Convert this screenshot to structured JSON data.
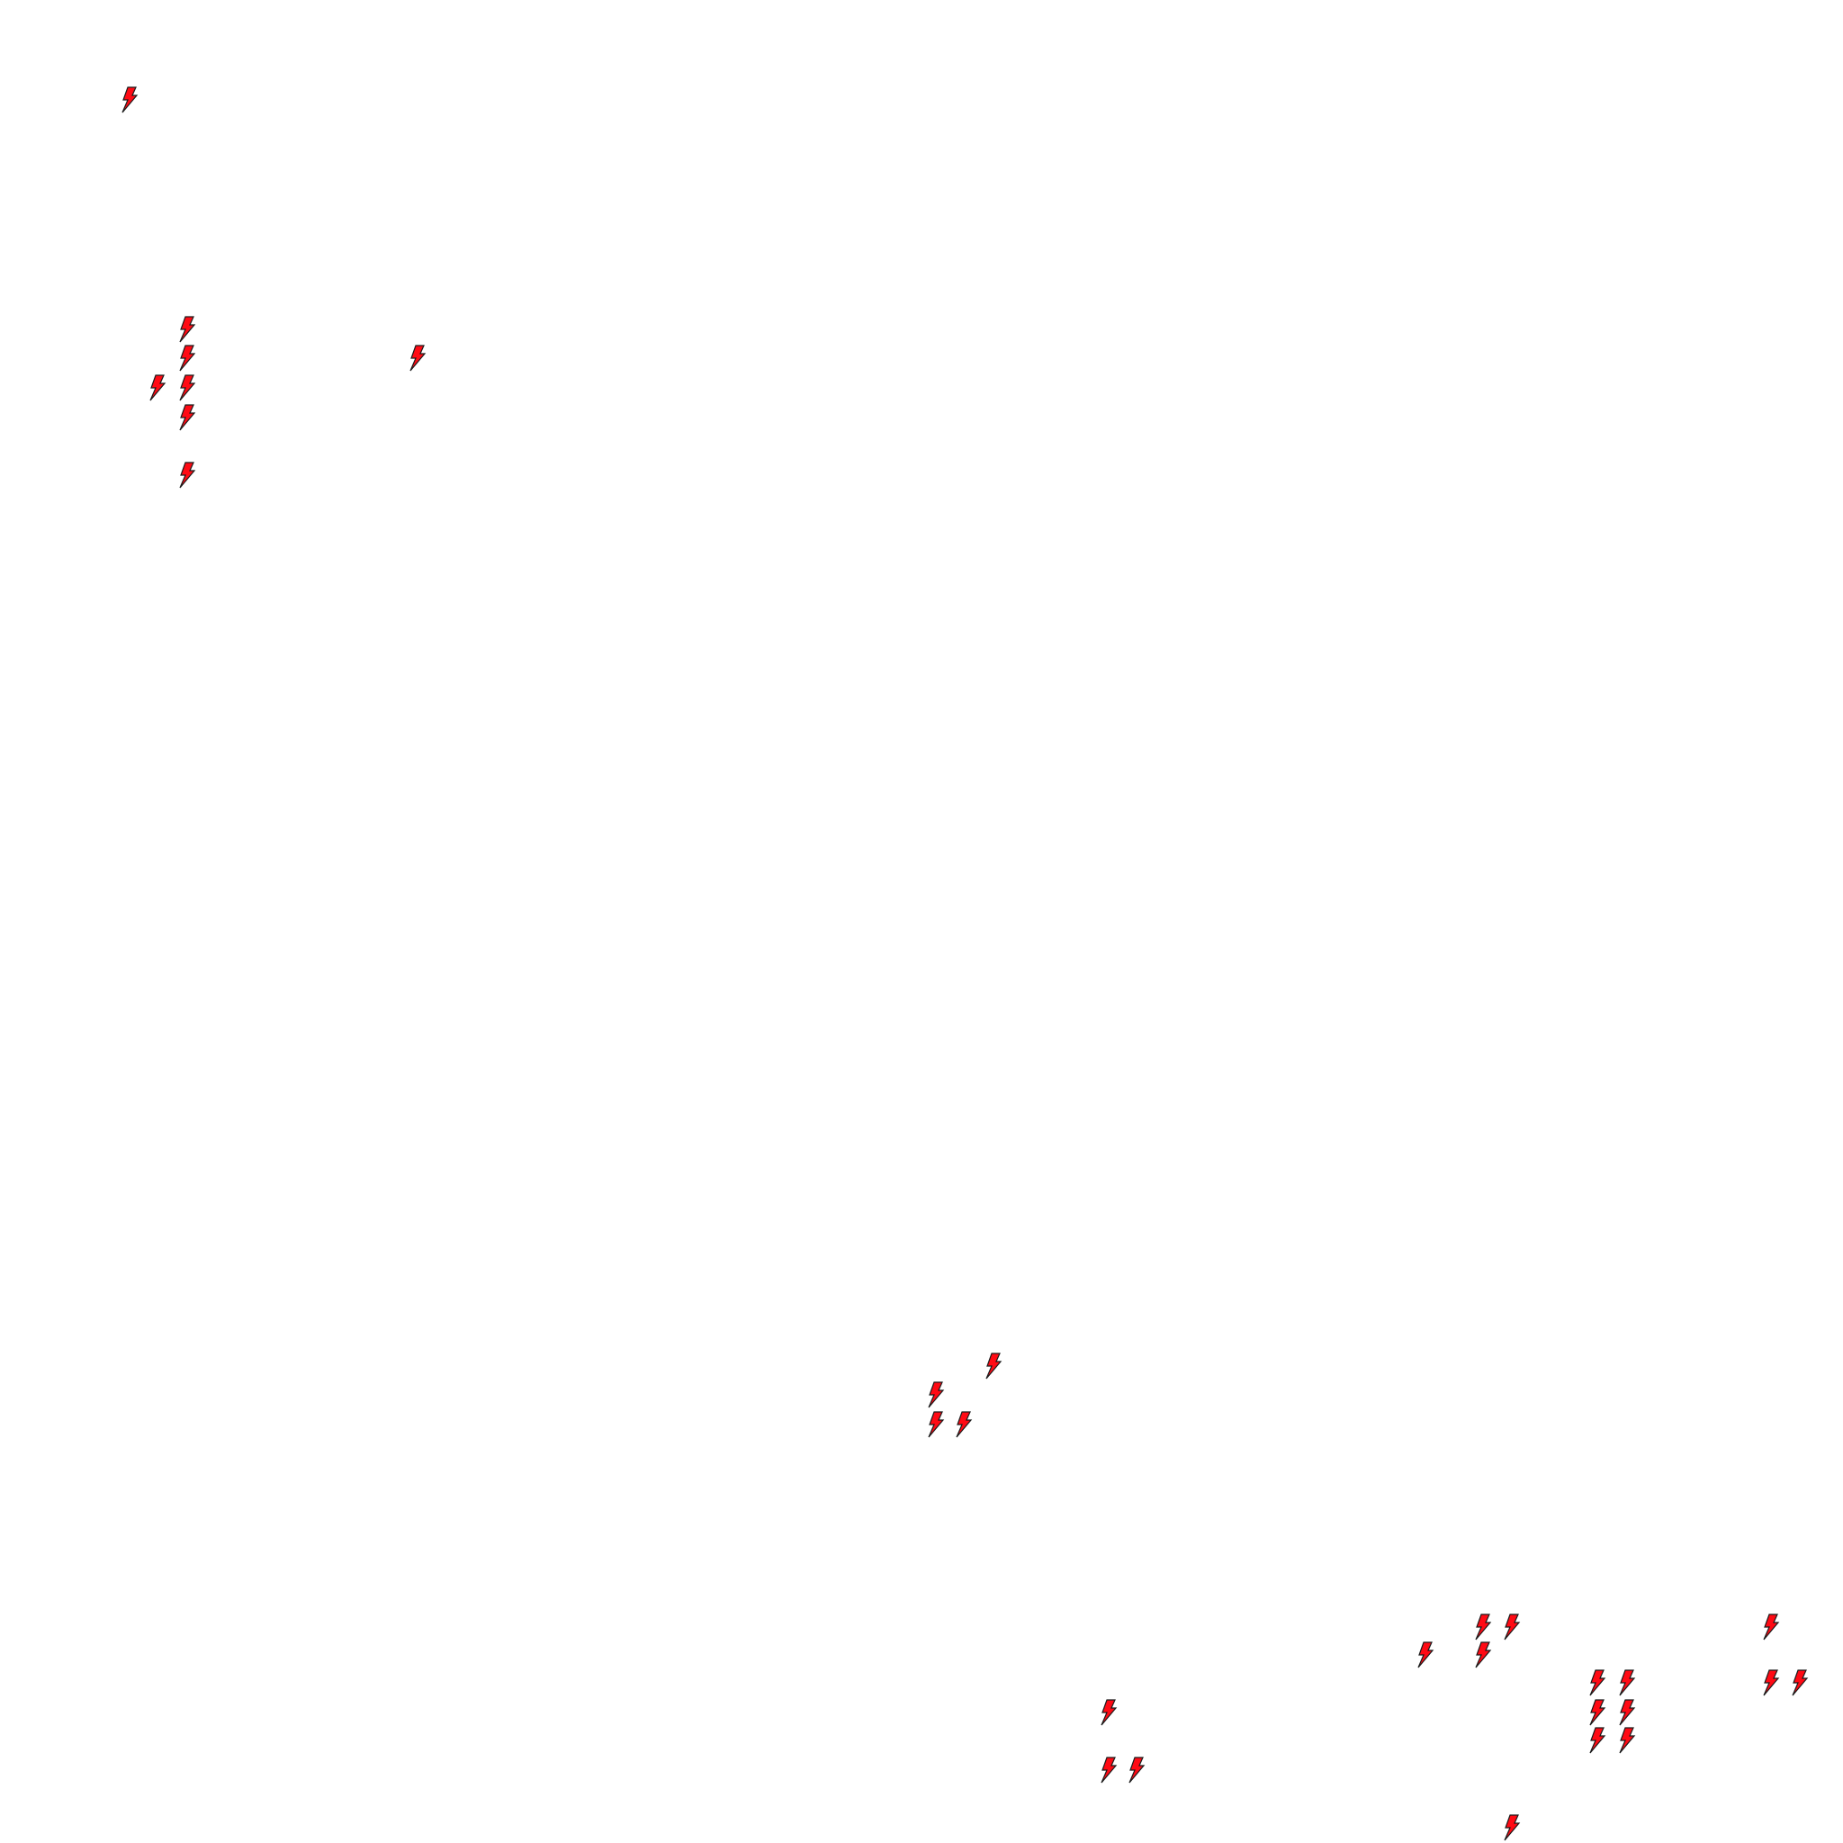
{
  "map": {
    "marker_icon": "lightning-bolt-icon",
    "marker_fill": "#ff0a14",
    "marker_stroke": "#1a1a1a",
    "background": "#ffffff",
    "marker_count": 29
  }
}
